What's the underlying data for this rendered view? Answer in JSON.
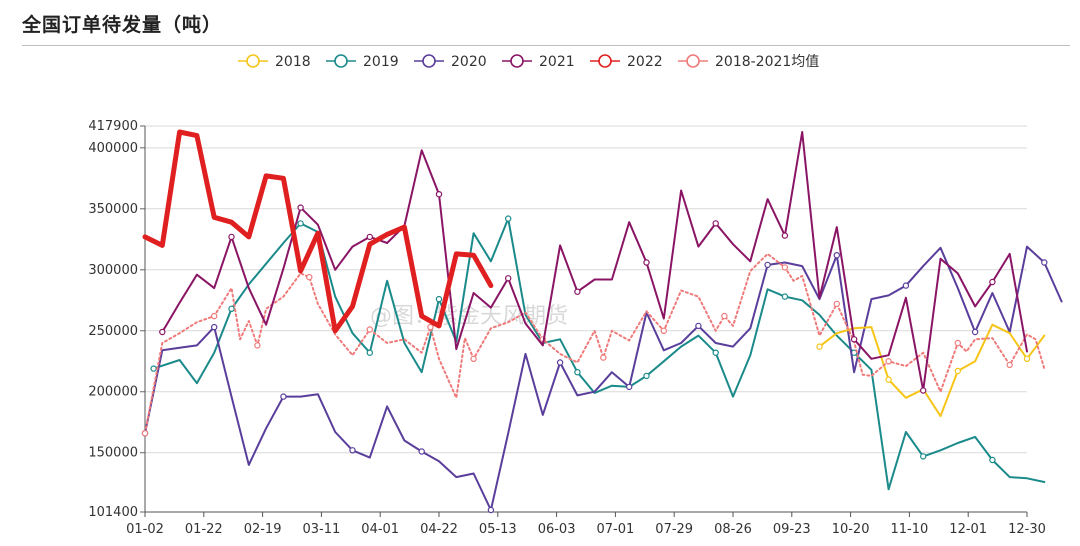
{
  "title": "全国订单待发量（吨）",
  "watermark": "@图：紫金天风期货",
  "chart_data": {
    "type": "line",
    "title": "全国订单待发量（吨）",
    "xlabel": "",
    "ylabel": "",
    "ylim": [
      101400,
      417900
    ],
    "yticks": [
      101400,
      150000,
      200000,
      250000,
      300000,
      350000,
      400000,
      417900
    ],
    "xticks": [
      "01-02",
      "01-22",
      "02-19",
      "03-11",
      "04-01",
      "04-22",
      "05-13",
      "06-03",
      "07-01",
      "07-29",
      "08-26",
      "09-23",
      "10-20",
      "11-10",
      "12-01",
      "12-30"
    ],
    "xrange": [
      1,
      52
    ],
    "legend_position": "top-center",
    "series": [
      {
        "name": "2018",
        "color": "#f5c518",
        "width": 2,
        "dashed": false,
        "points": [
          [
            40.0,
            237000
          ],
          [
            41.0,
            248000
          ],
          [
            42.0,
            252000
          ],
          [
            43.0,
            253000
          ],
          [
            44.0,
            210000
          ],
          [
            45.0,
            195000
          ],
          [
            46.0,
            202000
          ],
          [
            47.0,
            180000
          ],
          [
            48.0,
            217000
          ],
          [
            49.0,
            225000
          ],
          [
            50.0,
            255000
          ],
          [
            51.0,
            248000
          ],
          [
            52.0,
            227000
          ],
          [
            53.0,
            246000
          ]
        ]
      },
      {
        "name": "2019",
        "color": "#1b8a8a",
        "width": 2,
        "dashed": false,
        "points": [
          [
            1.5,
            219000
          ],
          [
            3.0,
            226000
          ],
          [
            4.0,
            207000
          ],
          [
            5.0,
            232000
          ],
          [
            6.0,
            268000
          ],
          [
            7.0,
            288000
          ],
          [
            8.0,
            305000
          ],
          [
            9.0,
            322000
          ],
          [
            10.0,
            338000
          ],
          [
            11.0,
            331000
          ],
          [
            12.0,
            278000
          ],
          [
            13.0,
            248000
          ],
          [
            14.0,
            232000
          ],
          [
            15.0,
            291000
          ],
          [
            16.0,
            240000
          ],
          [
            17.0,
            216000
          ],
          [
            18.0,
            276000
          ],
          [
            19.0,
            241000
          ],
          [
            20.0,
            330000
          ],
          [
            21.0,
            307000
          ],
          [
            22.0,
            342000
          ],
          [
            23.0,
            263000
          ],
          [
            24.0,
            240000
          ],
          [
            25.0,
            243000
          ],
          [
            26.0,
            216000
          ],
          [
            27.0,
            199000
          ],
          [
            28.0,
            205000
          ],
          [
            29.0,
            204000
          ],
          [
            30.0,
            213000
          ],
          [
            31.0,
            225000
          ],
          [
            32.0,
            237000
          ],
          [
            33.0,
            246000
          ],
          [
            34.0,
            232000
          ],
          [
            35.0,
            196000
          ],
          [
            36.0,
            230000
          ],
          [
            37.0,
            284000
          ],
          [
            38.0,
            278000
          ],
          [
            39.0,
            275000
          ],
          [
            40.0,
            263000
          ],
          [
            41.0,
            246000
          ],
          [
            42.0,
            232000
          ],
          [
            43.0,
            218000
          ],
          [
            44.0,
            120000
          ],
          [
            45.0,
            167000
          ],
          [
            46.0,
            147000
          ],
          [
            47.0,
            152000
          ],
          [
            48.0,
            158000
          ],
          [
            49.0,
            163000
          ],
          [
            50.0,
            144000
          ],
          [
            51.0,
            130000
          ],
          [
            52.0,
            129000
          ],
          [
            53.0,
            126000
          ]
        ]
      },
      {
        "name": "2020",
        "color": "#5a3e9b",
        "width": 2,
        "dashed": false,
        "points": [
          [
            1.0,
            166000
          ],
          [
            2.0,
            234000
          ],
          [
            3.0,
            236000
          ],
          [
            4.0,
            238000
          ],
          [
            5.0,
            253000
          ],
          [
            6.0,
            196000
          ],
          [
            7.0,
            140000
          ],
          [
            8.0,
            170000
          ],
          [
            9.0,
            196000
          ],
          [
            10.0,
            196000
          ],
          [
            11.0,
            198000
          ],
          [
            12.0,
            167000
          ],
          [
            13.0,
            152000
          ],
          [
            14.0,
            146000
          ],
          [
            15.0,
            188000
          ],
          [
            16.0,
            160000
          ],
          [
            17.0,
            151000
          ],
          [
            18.0,
            143000
          ],
          [
            19.0,
            130000
          ],
          [
            20.0,
            133000
          ],
          [
            21.0,
            103000
          ],
          [
            22.0,
            166000
          ],
          [
            23.0,
            231000
          ],
          [
            24.0,
            181000
          ],
          [
            25.0,
            224000
          ],
          [
            26.0,
            197000
          ],
          [
            27.0,
            200000
          ],
          [
            28.0,
            216000
          ],
          [
            29.0,
            204000
          ],
          [
            30.0,
            265000
          ],
          [
            31.0,
            234000
          ],
          [
            32.0,
            240000
          ],
          [
            33.0,
            254000
          ],
          [
            34.0,
            240000
          ],
          [
            35.0,
            237000
          ],
          [
            36.0,
            252000
          ],
          [
            37.0,
            304000
          ],
          [
            38.0,
            306000
          ],
          [
            39.0,
            303000
          ],
          [
            40.0,
            276000
          ],
          [
            41.0,
            312000
          ],
          [
            42.0,
            216000
          ],
          [
            43.0,
            276000
          ],
          [
            44.0,
            279000
          ],
          [
            45.0,
            287000
          ],
          [
            46.0,
            303000
          ],
          [
            47.0,
            318000
          ],
          [
            48.0,
            285000
          ],
          [
            49.0,
            249000
          ],
          [
            50.0,
            281000
          ],
          [
            51.0,
            249000
          ],
          [
            52.0,
            319000
          ],
          [
            53.0,
            306000
          ],
          [
            54.0,
            274000
          ]
        ]
      },
      {
        "name": "2021",
        "color": "#8a1565",
        "width": 2,
        "dashed": false,
        "points": [
          [
            2.0,
            249000
          ],
          [
            3.0,
            273000
          ],
          [
            4.0,
            296000
          ],
          [
            5.0,
            285000
          ],
          [
            6.0,
            327000
          ],
          [
            7.0,
            285000
          ],
          [
            8.0,
            255000
          ],
          [
            9.0,
            301000
          ],
          [
            10.0,
            351000
          ],
          [
            11.0,
            337000
          ],
          [
            12.0,
            300000
          ],
          [
            13.0,
            319000
          ],
          [
            14.0,
            327000
          ],
          [
            15.0,
            322000
          ],
          [
            16.0,
            336000
          ],
          [
            17.0,
            398000
          ],
          [
            18.0,
            362000
          ],
          [
            19.0,
            235000
          ],
          [
            20.0,
            281000
          ],
          [
            21.0,
            269000
          ],
          [
            22.0,
            293000
          ],
          [
            23.0,
            256000
          ],
          [
            24.0,
            238000
          ],
          [
            25.0,
            320000
          ],
          [
            26.0,
            282000
          ],
          [
            27.0,
            292000
          ],
          [
            28.0,
            292000
          ],
          [
            29.0,
            339000
          ],
          [
            30.0,
            306000
          ],
          [
            31.0,
            260000
          ],
          [
            32.0,
            365000
          ],
          [
            33.0,
            319000
          ],
          [
            34.0,
            338000
          ],
          [
            35.0,
            321000
          ],
          [
            36.0,
            307000
          ],
          [
            37.0,
            358000
          ],
          [
            38.0,
            328000
          ],
          [
            39.0,
            413000
          ],
          [
            40.0,
            277000
          ],
          [
            41.0,
            335000
          ],
          [
            42.0,
            243000
          ],
          [
            43.0,
            227000
          ],
          [
            44.0,
            230000
          ],
          [
            45.0,
            277000
          ],
          [
            46.0,
            201000
          ],
          [
            47.0,
            309000
          ],
          [
            48.0,
            297000
          ],
          [
            49.0,
            270000
          ],
          [
            50.0,
            290000
          ],
          [
            51.0,
            313000
          ],
          [
            52.0,
            233000
          ]
        ]
      },
      {
        "name": "2022",
        "color": "#e02020",
        "width": 5,
        "dashed": false,
        "points": [
          [
            1.0,
            327000
          ],
          [
            2.0,
            320000
          ],
          [
            3.0,
            413000
          ],
          [
            4.0,
            410000
          ],
          [
            5.0,
            343000
          ],
          [
            6.0,
            339000
          ],
          [
            7.0,
            327000
          ],
          [
            8.0,
            377000
          ],
          [
            9.0,
            375000
          ],
          [
            10.0,
            299000
          ],
          [
            11.0,
            330000
          ],
          [
            12.0,
            250000
          ],
          [
            13.0,
            270000
          ],
          [
            14.0,
            321000
          ],
          [
            15.0,
            329000
          ],
          [
            16.0,
            335000
          ],
          [
            17.0,
            262000
          ],
          [
            18.0,
            254000
          ],
          [
            19.0,
            313000
          ],
          [
            20.0,
            312000
          ],
          [
            21.0,
            287000
          ]
        ]
      },
      {
        "name": "2018-2021均值",
        "color": "#f07a7a",
        "width": 2,
        "dashed": true,
        "points": [
          [
            1.0,
            166000
          ],
          [
            2.0,
            240000
          ],
          [
            3.0,
            248000
          ],
          [
            4.0,
            257000
          ],
          [
            5.0,
            262000
          ],
          [
            6.0,
            285000
          ],
          [
            6.5,
            243000
          ],
          [
            7.0,
            258000
          ],
          [
            7.5,
            238000
          ],
          [
            8.0,
            268000
          ],
          [
            9.0,
            278000
          ],
          [
            10.0,
            297000
          ],
          [
            10.5,
            294000
          ],
          [
            11.0,
            272000
          ],
          [
            12.0,
            247000
          ],
          [
            13.0,
            230000
          ],
          [
            14.0,
            251000
          ],
          [
            15.0,
            240000
          ],
          [
            16.0,
            243000
          ],
          [
            17.0,
            232000
          ],
          [
            17.5,
            253000
          ],
          [
            18.0,
            227000
          ],
          [
            19.0,
            195000
          ],
          [
            19.5,
            244000
          ],
          [
            20.0,
            227000
          ],
          [
            21.0,
            252000
          ],
          [
            22.0,
            257000
          ],
          [
            23.0,
            265000
          ],
          [
            24.0,
            243000
          ],
          [
            25.0,
            231000
          ],
          [
            26.0,
            224000
          ],
          [
            27.0,
            250000
          ],
          [
            27.5,
            228000
          ],
          [
            28.0,
            250000
          ],
          [
            29.0,
            242000
          ],
          [
            30.0,
            266000
          ],
          [
            31.0,
            250000
          ],
          [
            32.0,
            283000
          ],
          [
            33.0,
            278000
          ],
          [
            34.0,
            250000
          ],
          [
            34.5,
            262000
          ],
          [
            35.0,
            254000
          ],
          [
            36.0,
            299000
          ],
          [
            37.0,
            313000
          ],
          [
            38.0,
            302000
          ],
          [
            38.5,
            291000
          ],
          [
            39.0,
            295000
          ],
          [
            40.0,
            246000
          ],
          [
            41.0,
            272000
          ],
          [
            42.0,
            241000
          ],
          [
            42.5,
            214000
          ],
          [
            43.0,
            213000
          ],
          [
            44.0,
            225000
          ],
          [
            45.0,
            221000
          ],
          [
            46.0,
            232000
          ],
          [
            47.0,
            200000
          ],
          [
            48.0,
            240000
          ],
          [
            48.5,
            233000
          ],
          [
            49.0,
            243000
          ],
          [
            50.0,
            244000
          ],
          [
            51.0,
            222000
          ],
          [
            52.0,
            247000
          ],
          [
            52.5,
            243000
          ],
          [
            53.0,
            219000
          ]
        ]
      }
    ]
  }
}
